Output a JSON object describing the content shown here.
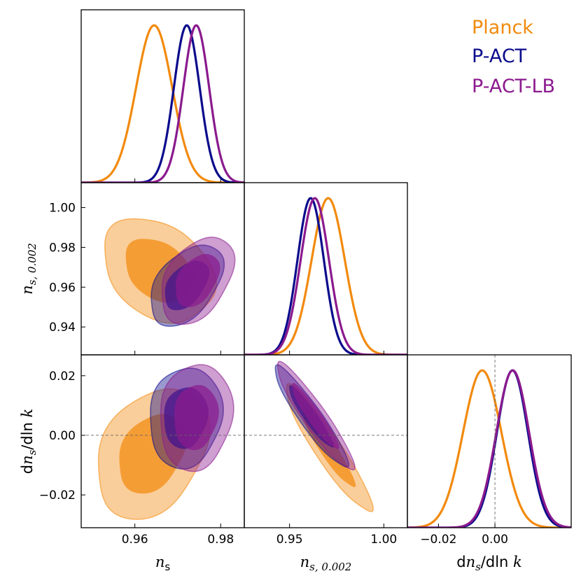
{
  "chart_data": {
    "type": "triangle-plot",
    "colors": {
      "Planck": "#f28a0e",
      "P-ACT": "#0b0b8c",
      "P-ACT-LB": "#8b1a8e"
    },
    "legend": {
      "placement": "top-right",
      "entries": [
        "Planck",
        "P-ACT",
        "P-ACT-LB"
      ]
    },
    "parameters": [
      {
        "key": "ns",
        "label": "n",
        "sub": "s",
        "range": [
          0.9475,
          0.9855
        ],
        "ticks": [
          0.96,
          0.98
        ],
        "tick_labels": [
          "0.96",
          "0.98"
        ]
      },
      {
        "key": "ns002",
        "label": "n",
        "sub": "s, 0.002",
        "range": [
          0.926,
          1.0125
        ],
        "ticks": [
          0.95,
          1.0
        ],
        "tick_labels": [
          "0.95",
          "1.00"
        ],
        "y_ticks": [
          0.94,
          0.96,
          0.98,
          1.0
        ],
        "y_tick_labels": [
          "0.94",
          "0.96",
          "0.98",
          "1.00"
        ]
      },
      {
        "key": "dns",
        "label_d": "d",
        "label_n": "n",
        "sub": "s",
        "label_tail": "/dln",
        "label_k": "k",
        "range": [
          -0.031,
          0.027
        ],
        "ticks": [
          -0.02,
          0.0
        ],
        "tick_labels": [
          "−0.02",
          "0.00"
        ],
        "y_ticks": [
          -0.02,
          0.0,
          0.02
        ],
        "y_tick_labels": [
          "−0.02",
          "0.00",
          "0.02"
        ]
      }
    ],
    "marginals": [
      {
        "param": "ns",
        "series": [
          {
            "name": "Planck",
            "mean": 0.9645,
            "sd": 0.0042
          },
          {
            "name": "P-ACT",
            "mean": 0.9721,
            "sd": 0.003
          },
          {
            "name": "P-ACT-LB",
            "mean": 0.9743,
            "sd": 0.003
          }
        ]
      },
      {
        "param": "ns002",
        "series": [
          {
            "name": "Planck",
            "mean": 0.9705,
            "sd": 0.0088
          },
          {
            "name": "P-ACT",
            "mean": 0.9612,
            "sd": 0.007
          },
          {
            "name": "P-ACT-LB",
            "mean": 0.9634,
            "sd": 0.0075
          }
        ]
      },
      {
        "param": "dns",
        "series": [
          {
            "name": "Planck",
            "mean": -0.0045,
            "sd": 0.0068
          },
          {
            "name": "P-ACT",
            "mean": 0.0062,
            "sd": 0.0055
          },
          {
            "name": "P-ACT-LB",
            "mean": 0.0063,
            "sd": 0.0058
          }
        ]
      }
    ],
    "contours": [
      {
        "x": "ns",
        "y": "ns002",
        "series": [
          {
            "name": "Planck",
            "cx": 0.9655,
            "cy": 0.9685,
            "sx": 0.0052,
            "sy": 0.0105,
            "rho": -0.3
          },
          {
            "name": "P-ACT",
            "cx": 0.972,
            "cy": 0.961,
            "sx": 0.0034,
            "sy": 0.0082,
            "rho": 0.45
          },
          {
            "name": "P-ACT-LB",
            "cx": 0.9745,
            "cy": 0.9635,
            "sx": 0.0034,
            "sy": 0.0088,
            "rho": 0.4
          }
        ]
      },
      {
        "x": "ns",
        "y": "dns",
        "series": [
          {
            "name": "Planck",
            "cx": 0.964,
            "cy": -0.006,
            "sx": 0.0052,
            "sy": 0.0088,
            "rho": 0.3
          },
          {
            "name": "P-ACT",
            "cx": 0.9718,
            "cy": 0.006,
            "sx": 0.0034,
            "sy": 0.0068,
            "rho": 0.1
          },
          {
            "name": "P-ACT-LB",
            "cx": 0.9742,
            "cy": 0.0062,
            "sx": 0.0034,
            "sy": 0.0072,
            "rho": 0.1
          }
        ]
      },
      {
        "x": "ns002",
        "y": "dns",
        "series": [
          {
            "name": "Planck",
            "cx": 0.9705,
            "cy": -0.0045,
            "sx": 0.0092,
            "sy": 0.0085,
            "rho": -0.93
          },
          {
            "name": "P-ACT",
            "cx": 0.9612,
            "cy": 0.0062,
            "sx": 0.0078,
            "sy": 0.0068,
            "rho": -0.93
          },
          {
            "name": "P-ACT-LB",
            "cx": 0.9634,
            "cy": 0.0063,
            "sx": 0.0082,
            "sy": 0.0072,
            "rho": -0.93
          }
        ]
      }
    ],
    "reference_lines": {
      "dns": 0.0
    }
  }
}
